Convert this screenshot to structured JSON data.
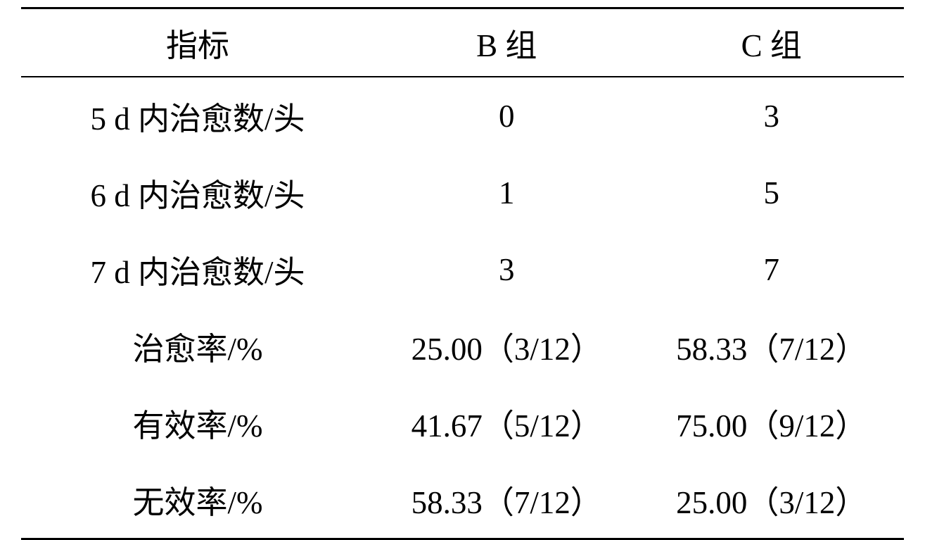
{
  "table": {
    "type": "table",
    "columns": [
      {
        "label": "指标",
        "width": "40%",
        "align": "center"
      },
      {
        "label": "B 组",
        "width": "30%",
        "align": "center"
      },
      {
        "label": "C 组",
        "width": "30%",
        "align": "center"
      }
    ],
    "rows": [
      {
        "indicator": "5 d 内治愈数/头",
        "group_b": "0",
        "group_c": "3"
      },
      {
        "indicator": "6 d 内治愈数/头",
        "group_b": "1",
        "group_c": "5"
      },
      {
        "indicator": "7 d 内治愈数/头",
        "group_b": "3",
        "group_c": "7"
      },
      {
        "indicator": "治愈率/%",
        "group_b": "25.00（3/12）",
        "group_c": "58.33（7/12）"
      },
      {
        "indicator": "有效率/%",
        "group_b": "41.67（5/12）",
        "group_c": "75.00（9/12）"
      },
      {
        "indicator": "无效率/%",
        "group_b": "58.33（7/12）",
        "group_c": "25.00（3/12）"
      }
    ],
    "border_top_width": 3,
    "border_header_bottom_width": 2,
    "border_bottom_width": 3,
    "border_color": "#000000",
    "background_color": "#ffffff",
    "text_color": "#000000",
    "font_size": 45,
    "header_font_size": 45
  }
}
